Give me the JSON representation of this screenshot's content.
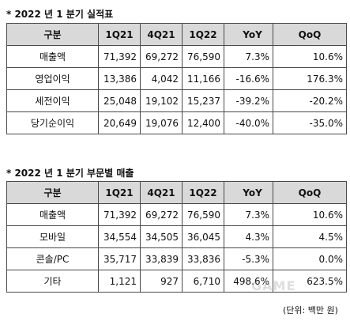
{
  "table1": {
    "title": "* 2022 년 1 분기 실적표",
    "headers": [
      "구분",
      "1Q21",
      "4Q21",
      "1Q22",
      "YoY",
      "QoQ"
    ],
    "rows": [
      [
        "매출액",
        "71,392",
        "69,272",
        "76,590",
        "7.3%",
        "10.6%"
      ],
      [
        "영업이익",
        "13,386",
        "4,042",
        "11,166",
        "-16.6%",
        "176.3%"
      ],
      [
        "세전이익",
        "25,048",
        "19,102",
        "15,237",
        "-39.2%",
        "-20.2%"
      ],
      [
        "당기순이익",
        "20,649",
        "19,076",
        "12,400",
        "-40.0%",
        "-35.0%"
      ]
    ]
  },
  "table2": {
    "title": "* 2022 년 1 분기 부문별 매출",
    "headers": [
      "구분",
      "1Q21",
      "4Q21",
      "1Q22",
      "YoY",
      "QoQ"
    ],
    "rows": [
      [
        "매출액",
        "71,392",
        "69,272",
        "76,590",
        "7.3%",
        "10.6%"
      ],
      [
        "모바일",
        "34,554",
        "34,505",
        "36,045",
        "4.3%",
        "4.5%"
      ],
      [
        "콘솔/PC",
        "35,717",
        "33,839",
        "33,836",
        "-5.3%",
        "0.0%"
      ],
      [
        "기타",
        "1,121",
        "927",
        "6,710",
        "498.6%",
        "623.5%"
      ]
    ]
  },
  "unit_note": "(단위: 백만 원)",
  "watermark": "GAME"
}
